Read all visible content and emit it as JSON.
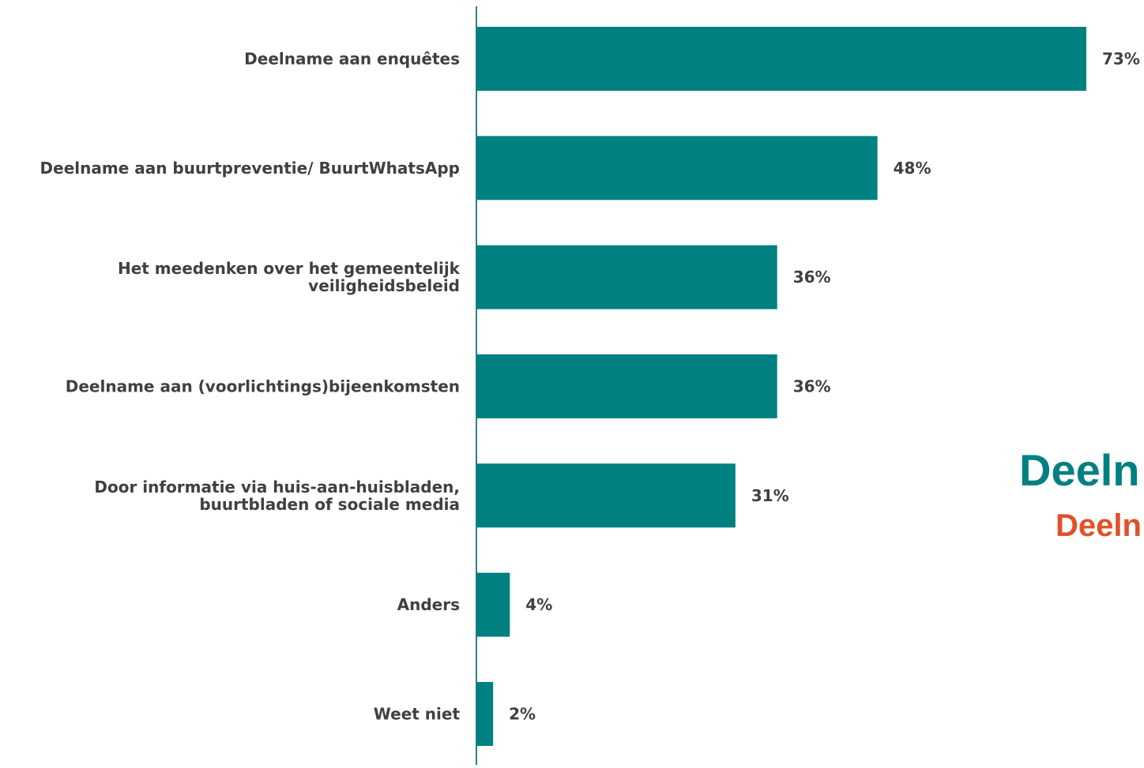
{
  "chart_data": {
    "type": "bar",
    "orientation": "horizontal",
    "categories": [
      [
        "Deelname aan enquêtes"
      ],
      [
        "Deelname aan buurtpreventie/ BuurtWhatsApp"
      ],
      [
        "Het meedenken over het gemeentelijk",
        "veiligheidsbeleid"
      ],
      [
        "Deelname aan (voorlichtings)bijeenkomsten"
      ],
      [
        "Door informatie via huis-aan-huisbladen,",
        "buurtbladen of sociale media"
      ],
      [
        "Anders"
      ],
      [
        "Weet niet"
      ]
    ],
    "values": [
      73,
      48,
      36,
      36,
      31,
      4,
      2
    ],
    "value_labels": [
      "73%",
      "48%",
      "36%",
      "36%",
      "31%",
      "4%",
      "2%"
    ],
    "unit": "%",
    "xlim": [
      0,
      73
    ],
    "grid": false,
    "legend": "none",
    "colors": {
      "bar": "#008080",
      "axis": "#2f7f7f",
      "text": "#404040"
    }
  },
  "overlay": {
    "title": "Deeln",
    "subtitle": "Deeln",
    "colors": {
      "title": "#008080",
      "subtitle": "#e0512a"
    }
  }
}
